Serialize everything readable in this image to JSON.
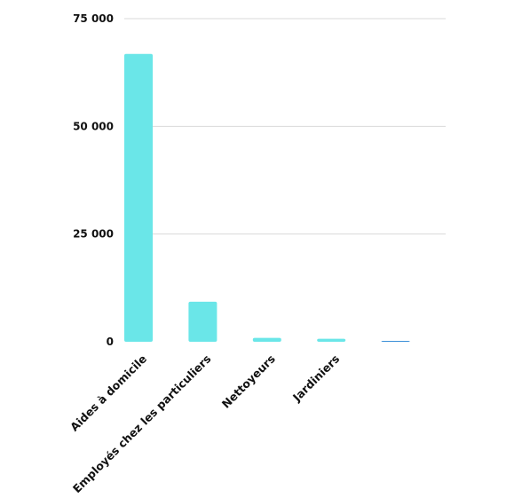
{
  "chart_data": {
    "type": "bar",
    "title": "",
    "xlabel": "",
    "ylabel": "",
    "categories": [
      "Aides à domicile",
      "Employés chez les particuliers",
      "Nettoyeurs",
      "Jardiniers",
      ""
    ],
    "values": [
      66800,
      9300,
      900,
      700,
      150
    ],
    "ylim": [
      0,
      75000
    ],
    "yticks": [
      0,
      25000,
      50000,
      75000
    ],
    "ytick_labels": [
      "0",
      "25 000",
      "50 000",
      "75 000"
    ],
    "grid": true,
    "legend": "none",
    "colors": {
      "bar": "#6ae6e8",
      "grid": "#d9d9d9",
      "baseline": "#3a8fd8"
    }
  }
}
